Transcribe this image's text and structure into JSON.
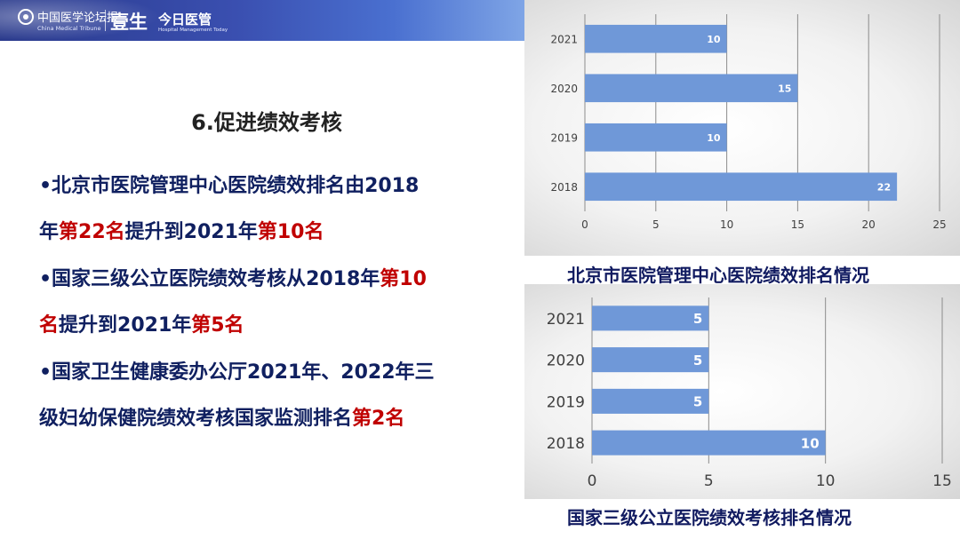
{
  "header": {
    "brand_cn": "中国医学论坛报",
    "brand_en": "China Medical Tribune",
    "brand_mid": "壹生",
    "brand_today": "今日医管",
    "brand_today_en": "Hospital Management Today"
  },
  "content": {
    "title": "6.促进绩效考核",
    "bullets": [
      [
        [
          {
            "t": "•北京市医院管理中心医院绩效排名由2018",
            "h": false
          }
        ],
        [
          {
            "t": "年",
            "h": false
          },
          {
            "t": "第22名",
            "h": true
          },
          {
            "t": "提升到2021年",
            "h": false
          },
          {
            "t": "第10名",
            "h": true
          }
        ]
      ],
      [
        [
          {
            "t": "•国家三级公立医院绩效考核从2018年",
            "h": false
          },
          {
            "t": "第10",
            "h": true
          }
        ],
        [
          {
            "t": "名",
            "h": true
          },
          {
            "t": "提升到2021年",
            "h": false
          },
          {
            "t": "第5名",
            "h": true
          }
        ]
      ],
      [
        [
          {
            "t": "•国家卫生健康委办公厅2021年、2022年三",
            "h": false
          }
        ],
        [
          {
            "t": "级妇幼保健院绩效考核国家监测排名",
            "h": false
          },
          {
            "t": "第2名",
            "h": true
          }
        ]
      ]
    ]
  },
  "colors": {
    "highlight": "#c00000",
    "text": "#102060",
    "bar": "#6f98d8"
  },
  "chart_data": [
    {
      "type": "bar",
      "orientation": "horizontal",
      "title": "北京市医院管理中心医院绩效排名情况",
      "categories": [
        "2021",
        "2020",
        "2019",
        "2018"
      ],
      "values": [
        10,
        15,
        10,
        22
      ],
      "xlim": [
        0,
        25
      ],
      "xticks": [
        0,
        5,
        10,
        15,
        20,
        25
      ],
      "grid": true,
      "bar_color": "#6f98d8"
    },
    {
      "type": "bar",
      "orientation": "horizontal",
      "title": "国家三级公立医院绩效考核排名情况",
      "categories": [
        "2021",
        "2020",
        "2019",
        "2018"
      ],
      "values": [
        5,
        5,
        5,
        10
      ],
      "xlim": [
        0,
        15
      ],
      "xticks": [
        0,
        5,
        10,
        15
      ],
      "grid": true,
      "bar_color": "#6f98d8"
    }
  ]
}
